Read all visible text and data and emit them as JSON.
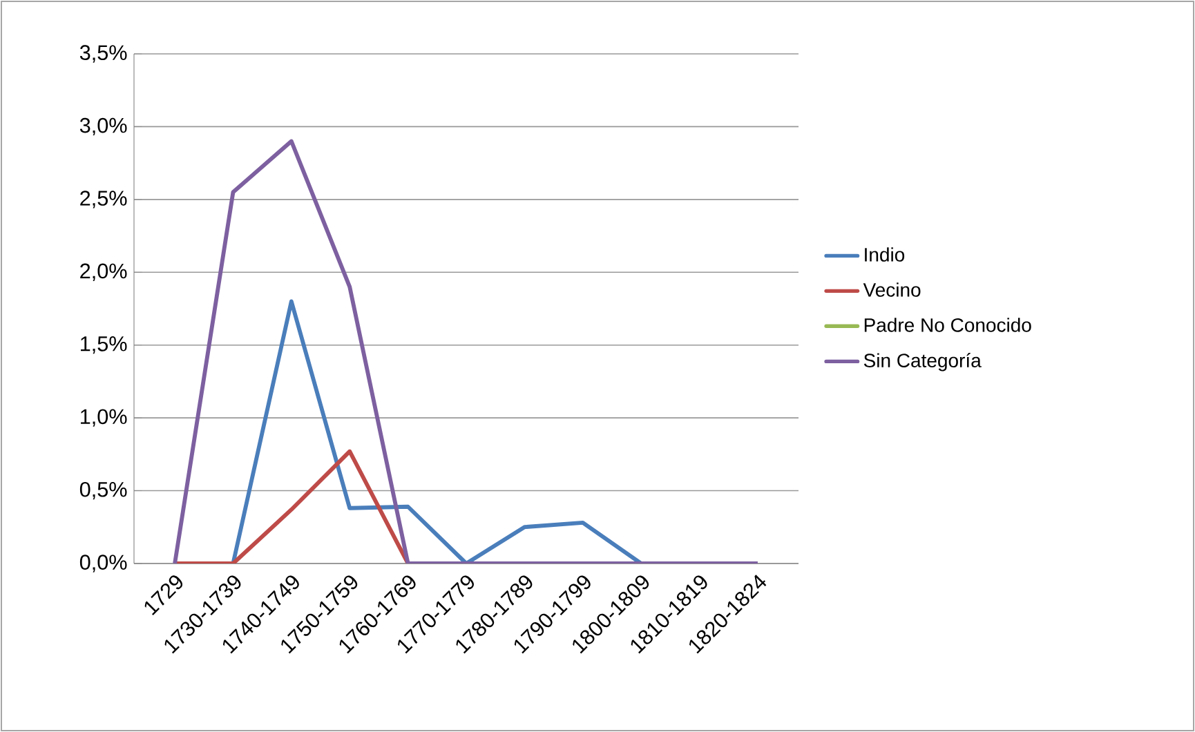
{
  "chart_data": {
    "type": "line",
    "categories": [
      "1729",
      "1730-1739",
      "1740-1749",
      "1750-1759",
      "1760-1769",
      "1770-1779",
      "1780-1789",
      "1790-1799",
      "1800-1809",
      "1810-1819",
      "1820-1824"
    ],
    "series": [
      {
        "name": "Indio",
        "color": "#4a7ebb",
        "values": [
          null,
          0,
          1.8,
          0.38,
          0.39,
          0,
          0.25,
          0.28,
          0,
          null,
          null
        ]
      },
      {
        "name": "Vecino",
        "color": "#be4b48",
        "values": [
          0,
          0,
          0.37,
          0.77,
          0,
          null,
          null,
          null,
          null,
          null,
          null
        ]
      },
      {
        "name": "Padre No Conocido",
        "color": "#98b954",
        "values": [
          null,
          null,
          null,
          null,
          null,
          null,
          null,
          null,
          null,
          null,
          null
        ]
      },
      {
        "name": "Sin Categoría",
        "color": "#7d60a0",
        "values": [
          0,
          2.55,
          2.9,
          1.9,
          0,
          0,
          0,
          0,
          0,
          0,
          0
        ]
      }
    ],
    "ylim": [
      0,
      3.5
    ],
    "yticks": [
      {
        "value": 0,
        "label": "0,0%"
      },
      {
        "value": 0.5,
        "label": "0,5%"
      },
      {
        "value": 1,
        "label": "1,0%"
      },
      {
        "value": 1.5,
        "label": "1,5%"
      },
      {
        "value": 2,
        "label": "2,0%"
      },
      {
        "value": 2.5,
        "label": "2,5%"
      },
      {
        "value": 3,
        "label": "3,0%"
      },
      {
        "value": 3.5,
        "label": "3,5%"
      }
    ],
    "grid": "y",
    "legend": "right",
    "marker": "none",
    "line_style": "solid"
  }
}
